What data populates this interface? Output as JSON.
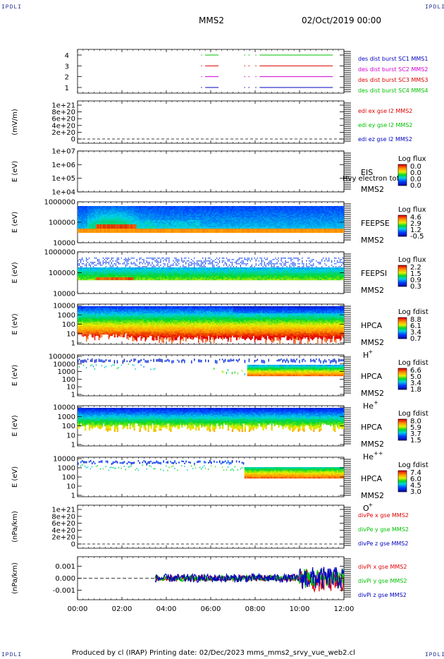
{
  "corners": {
    "tl": "IPDLI",
    "tr": "IPDLI",
    "bl": "IPDLI",
    "br": "IPDLI"
  },
  "header": {
    "mission": "MMS2",
    "date": "02/Oct/2019 00:00"
  },
  "footer": {
    "text": "Produced by cl (IRAP)   Printing date: 02/Dec/2023   mms_mms2_srvy_vue_web2.cl"
  },
  "colors": {
    "red": "#e00000",
    "green": "#00c000",
    "blue": "#0000c0",
    "magenta": "#d000d0",
    "bg": "#ffffff"
  },
  "xaxis": {
    "ticks": [
      "00:00",
      "02:00",
      "04:00",
      "06:00",
      "08:00",
      "10:00",
      "12:00"
    ]
  },
  "chart_data": [
    {
      "id": "burst",
      "type": "line",
      "yticks": [
        "1",
        "2",
        "3",
        "4"
      ],
      "legend": [
        {
          "text": "des dist burst SC1 MMS1",
          "color": "#0000c0"
        },
        {
          "text": "des dist burst SC2 MMS2",
          "color": "#d000d0"
        },
        {
          "text": "des dist burst SC3 MMS3",
          "color": "#e00000"
        },
        {
          "text": "des dist burst SC4 MMS4",
          "color": "#00c000"
        }
      ],
      "series": [
        {
          "level": 4,
          "color": "#00c000",
          "segments": [
            [
              5.75,
              6.35
            ],
            [
              7.7,
              7.75
            ],
            [
              8.2,
              11.5
            ]
          ]
        },
        {
          "level": 3,
          "color": "#e00000",
          "segments": [
            [
              5.75,
              6.35
            ],
            [
              7.7,
              7.75
            ],
            [
              8.2,
              11.5
            ]
          ]
        },
        {
          "level": 2,
          "color": "#d000d0",
          "segments": [
            [
              5.75,
              6.35
            ],
            [
              7.7,
              7.75
            ],
            [
              8.2,
              11.5
            ]
          ]
        },
        {
          "level": 1,
          "color": "#0000c0",
          "segments": [
            [
              5.75,
              6.35
            ],
            [
              7.7,
              7.75
            ],
            [
              8.2,
              11.5
            ]
          ]
        }
      ]
    },
    {
      "id": "edi",
      "type": "line",
      "ylabel": "(mV/m)",
      "yticks": [
        "0",
        "2e+20",
        "4e+20",
        "6e+20",
        "8e+20",
        "1e+21"
      ],
      "legend": [
        {
          "text": "edi ex gse l2 MMS2",
          "color": "#e00000"
        },
        {
          "text": "edi ey gse l2 MMS2",
          "color": "#00c000"
        },
        {
          "text": "edi ez gse l2 MMS2",
          "color": "#0000c0"
        }
      ]
    },
    {
      "id": "eis",
      "type": "heatmap",
      "ylabel": "E (eV)",
      "yticks": [
        "1e+04",
        "1e+05",
        "1e+06",
        "1e+07"
      ],
      "side": [
        "EIS",
        "MMS2"
      ],
      "overlay": "Hvy electron tof",
      "cbar": {
        "title": "Log flux",
        "values": [
          "0.0",
          "0.0",
          "0.0",
          "0.0"
        ]
      }
    },
    {
      "id": "feepse",
      "type": "heatmap",
      "ylabel": "E (eV)",
      "yticks": [
        "10000",
        "100000",
        "1000000"
      ],
      "side": [
        "FEEPSE",
        "MMS2"
      ],
      "cbar": {
        "title": "Log flux",
        "values": [
          "4.6",
          "2.9",
          "1.2",
          "-0.5"
        ]
      }
    },
    {
      "id": "feepsi",
      "type": "heatmap",
      "ylabel": "E (eV)",
      "yticks": [
        "10000",
        "100000",
        "1000000"
      ],
      "side": [
        "FEEPSI",
        "MMS2"
      ],
      "cbar": {
        "title": "Log flux",
        "values": [
          "2.2",
          "1.5",
          "0.9",
          "0.3"
        ]
      }
    },
    {
      "id": "hpca_h",
      "type": "heatmap",
      "ylabel": "E (eV)",
      "yticks": [
        "1",
        "10",
        "100",
        "1000",
        "10000"
      ],
      "side": [
        "HPCA",
        "MMS2"
      ],
      "species": "H",
      "charge": "+",
      "cbar": {
        "title": "Log fdist",
        "values": [
          "8.8",
          "6.1",
          "3.4",
          "0.7"
        ]
      }
    },
    {
      "id": "hpca_he",
      "type": "heatmap",
      "ylabel": "E (eV)",
      "yticks": [
        "1",
        "10",
        "100",
        "1000",
        "10000",
        "100000"
      ],
      "side": [
        "HPCA",
        "MMS2"
      ],
      "species": "He",
      "charge": "+",
      "cbar": {
        "title": "Log fdist",
        "values": [
          "6.6",
          "5.0",
          "3.4",
          "1.8"
        ]
      }
    },
    {
      "id": "hpca_hepp",
      "type": "heatmap",
      "ylabel": "E (eV)",
      "yticks": [
        "1",
        "10",
        "100",
        "1000",
        "10000"
      ],
      "side": [
        "HPCA",
        "MMS2"
      ],
      "species": "He",
      "charge": "++",
      "cbar": {
        "title": "Log fdist",
        "values": [
          "8.0",
          "5.9",
          "3.7",
          "1.5"
        ]
      }
    },
    {
      "id": "hpca_o",
      "type": "heatmap",
      "ylabel": "E (eV)",
      "yticks": [
        "1",
        "10",
        "100",
        "1000",
        "10000"
      ],
      "side": [
        "HPCA",
        "MMS2"
      ],
      "species": "O",
      "charge": "+",
      "cbar": {
        "title": "Log fdist",
        "values": [
          "7.4",
          "6.0",
          "4.5",
          "3.0"
        ]
      }
    },
    {
      "id": "divpe",
      "type": "line",
      "ylabel": "(nPa/km)",
      "yticks": [
        "0",
        "2e+20",
        "4e+20",
        "6e+20",
        "8e+20",
        "1e+21"
      ],
      "legend": [
        {
          "text": "divPe x gse MMS2",
          "color": "#e00000"
        },
        {
          "text": "divPe y gse MMS2",
          "color": "#00c000"
        },
        {
          "text": "divPe z gse MMS2",
          "color": "#0000c0"
        }
      ]
    },
    {
      "id": "divpi",
      "type": "line",
      "ylabel": "(nPa/km)",
      "yticks": [
        "-0.001",
        "0.000",
        "0.001"
      ],
      "legend": [
        {
          "text": "divPi x gse MMS2",
          "color": "#e00000"
        },
        {
          "text": "divPi y gse MMS2",
          "color": "#00c000"
        },
        {
          "text": "divPi z gse MMS2",
          "color": "#0000c0"
        }
      ],
      "data_start": 3.5
    }
  ]
}
